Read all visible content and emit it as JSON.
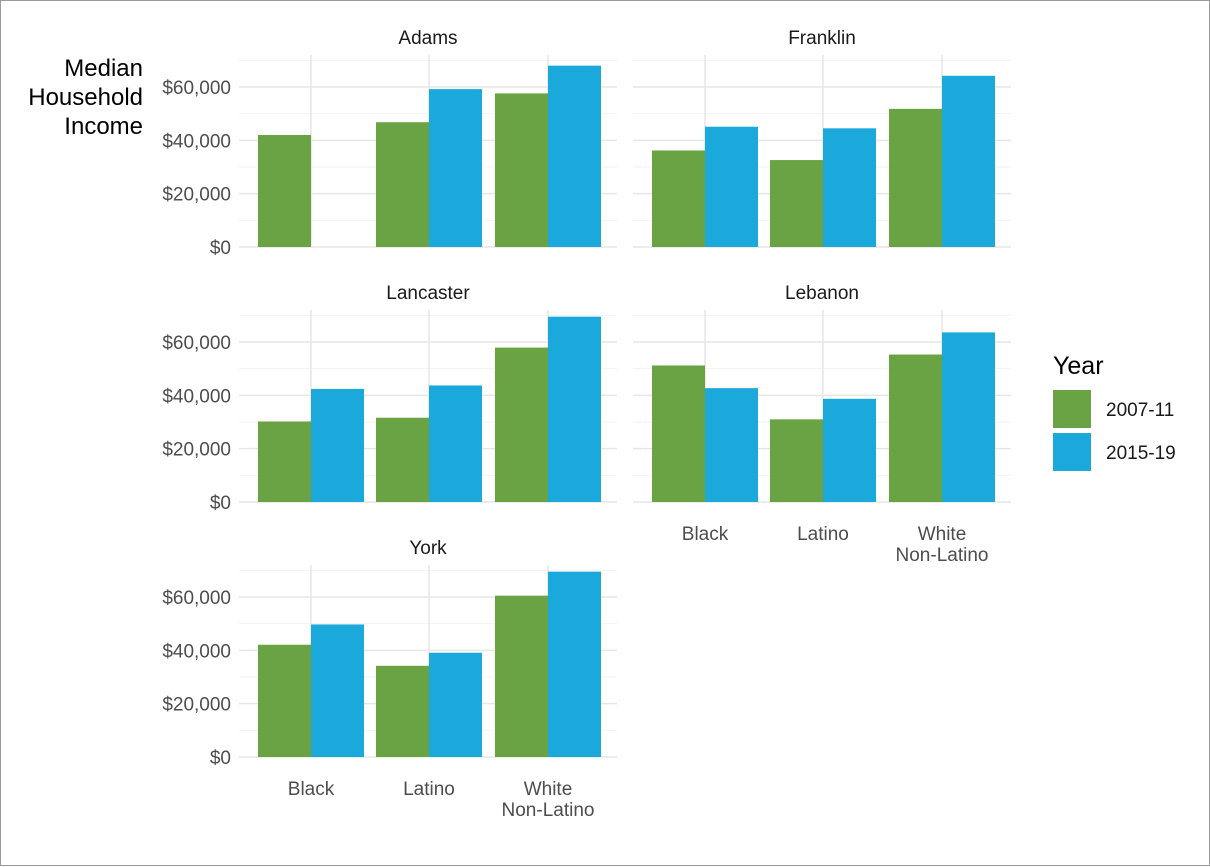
{
  "chart_data": {
    "type": "bar",
    "ylabel": "Median Household Income",
    "ylabel_lines": [
      "Median",
      "Household",
      "Income"
    ],
    "ylim": [
      0,
      72000
    ],
    "yticks": [
      0,
      20000,
      40000,
      60000
    ],
    "ytick_labels": [
      "$0",
      "$20,000",
      "$40,000",
      "$60,000"
    ],
    "categories": [
      "Black",
      "Latino",
      "White Non-Latino"
    ],
    "category_lines": [
      [
        "Black"
      ],
      [
        "Latino"
      ],
      [
        "White",
        "Non-Latino"
      ]
    ],
    "legend": {
      "title": "Year",
      "position": "right",
      "items": [
        {
          "label": "2007-11",
          "color": "#6aa343"
        },
        {
          "label": "2015-19",
          "color": "#1ba9db"
        }
      ]
    },
    "grid": true,
    "panels": [
      {
        "title": "Adams",
        "series": [
          {
            "name": "2007-11",
            "values": [
              42000,
              46800,
              57600
            ]
          },
          {
            "name": "2015-19",
            "values": [
              null,
              59200,
              68000
            ]
          }
        ]
      },
      {
        "title": "Franklin",
        "series": [
          {
            "name": "2007-11",
            "values": [
              36200,
              32600,
              51800
            ]
          },
          {
            "name": "2015-19",
            "values": [
              45100,
              44500,
              64200
            ]
          }
        ]
      },
      {
        "title": "Lancaster",
        "series": [
          {
            "name": "2007-11",
            "values": [
              30200,
              31600,
              57900
            ]
          },
          {
            "name": "2015-19",
            "values": [
              42400,
              43700,
              69500
            ]
          }
        ]
      },
      {
        "title": "Lebanon",
        "series": [
          {
            "name": "2007-11",
            "values": [
              51200,
              31000,
              55300
            ]
          },
          {
            "name": "2015-19",
            "values": [
              42700,
              38700,
              63600
            ]
          }
        ]
      },
      {
        "title": "York",
        "series": [
          {
            "name": "2007-11",
            "values": [
              42100,
              34200,
              60500
            ]
          },
          {
            "name": "2015-19",
            "values": [
              49700,
              39100,
              69500
            ]
          }
        ]
      }
    ]
  }
}
